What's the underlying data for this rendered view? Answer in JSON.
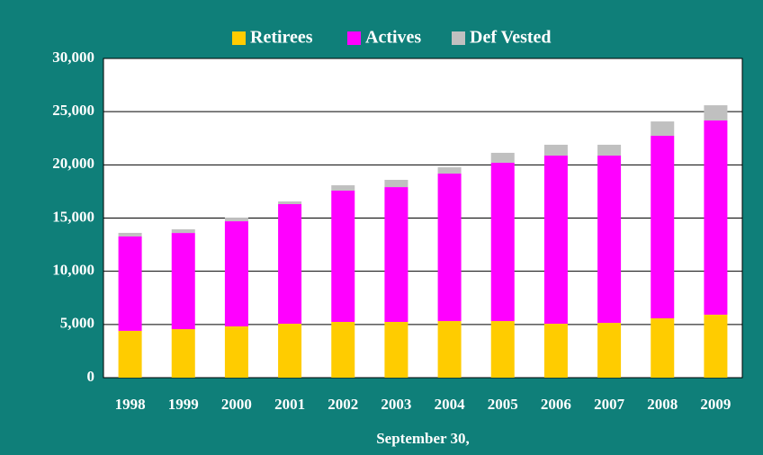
{
  "chart_data": {
    "type": "stacked_bar",
    "x_label": "September 30,",
    "categories": [
      "1998",
      "1999",
      "2000",
      "2001",
      "2002",
      "2003",
      "2004",
      "2005",
      "2006",
      "2007",
      "2008",
      "2009"
    ],
    "series": [
      {
        "name": "Retirees",
        "color": "#ffcc00",
        "values": [
          4400,
          4560,
          4820,
          5070,
          5240,
          5240,
          5320,
          5320,
          5070,
          5150,
          5580,
          5920
        ]
      },
      {
        "name": "Actives",
        "color": "#ff00ff",
        "values": [
          8870,
          9040,
          9880,
          11240,
          12340,
          12670,
          13860,
          14880,
          15800,
          15720,
          17150,
          18250
        ]
      },
      {
        "name": "Def Vested",
        "color": "#c0c0c0",
        "values": [
          340,
          340,
          340,
          250,
          500,
          680,
          590,
          930,
          1020,
          1020,
          1350,
          1430
        ]
      }
    ],
    "ylim": [
      0,
      30000
    ],
    "yticks": [
      0,
      {
        "value": 5000,
        "label": "5,000"
      },
      {
        "value": 10000,
        "label": "10,000"
      },
      {
        "value": 15000,
        "label": "15,000"
      },
      {
        "value": 20000,
        "label": "20,000"
      },
      {
        "value": 25000,
        "label": "25,000"
      },
      {
        "value": 30000,
        "label": "30,000"
      }
    ],
    "grid": true,
    "legend": "top"
  }
}
